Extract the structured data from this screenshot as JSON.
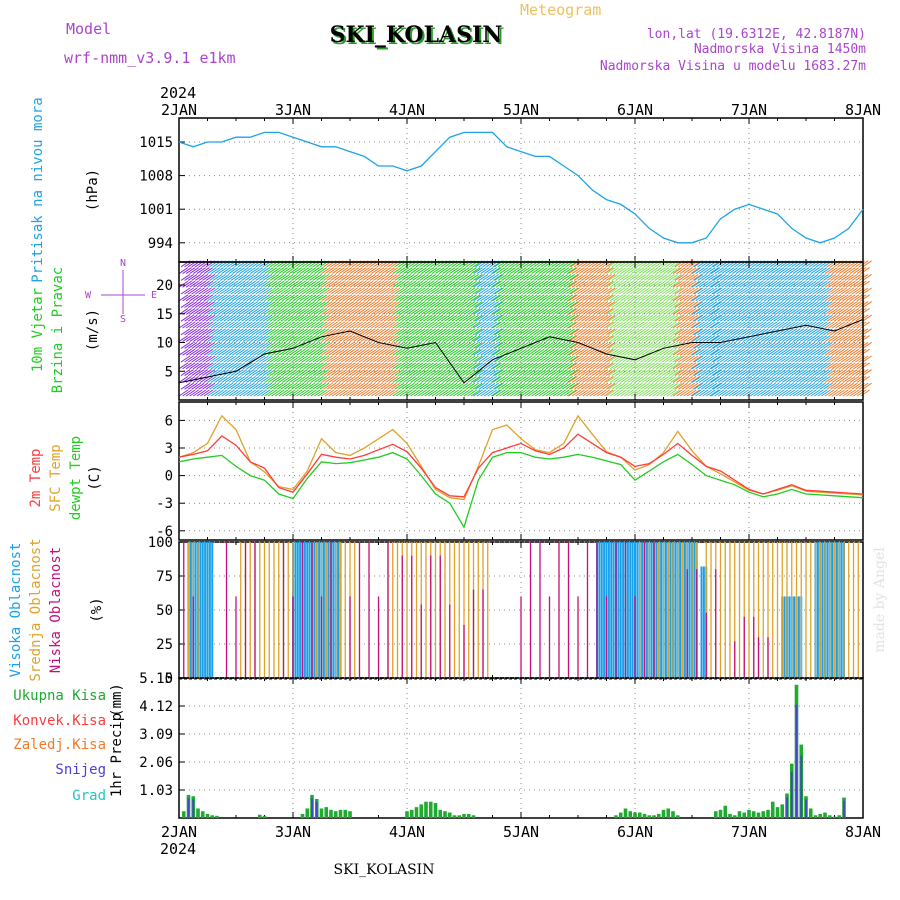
{
  "header": {
    "model_label": "Model",
    "model_name": "wrf-nmm_v3.9.1 e1km",
    "station": "SKI_KOLASIN",
    "meteogram": "Meteogram",
    "lonlat": "lon,lat (19.6312E, 42.8187N)",
    "altitude": "Nadmorska Visina 1450m",
    "model_altitude": "Nadmorska Visina u modelu 1683.27m",
    "year_top": "2024",
    "year_bottom": "2024",
    "footer": "SKI_KOLASIN",
    "watermark": "made by Angel"
  },
  "colors": {
    "pressure": "#1fa3e6",
    "temp2m": "#ff3b3b",
    "sfc": "#e0a22a",
    "dewpt": "#22cc22",
    "high_cloud": "#19a0e8",
    "mid_cloud": "#e0a22a",
    "low_cloud": "#c4107c",
    "total_precip": "#1faa30",
    "conv_precip": "#ff3b3b",
    "freezing_precip": "#f07a2a",
    "snow": "#4a3fd9",
    "hail": "#21c4c4",
    "model_label": "#aa44cc",
    "meteogram_title": "#f0c060",
    "grid": "#888888"
  },
  "chart_data": [
    {
      "type": "line",
      "panel": "pressure",
      "ylabel_main": "Pritisak na nivou mora",
      "ylabel_unit": "(hPa)",
      "yticks": [
        994,
        1001,
        1008,
        1015
      ],
      "ylim": [
        990,
        1020
      ],
      "x_hours": [
        0,
        3,
        6,
        9,
        12,
        15,
        18,
        21,
        24,
        27,
        30,
        33,
        36,
        39,
        42,
        45,
        48,
        51,
        54,
        57,
        60,
        63,
        66,
        69,
        72,
        75,
        78,
        81,
        84,
        87,
        90,
        93,
        96,
        99,
        102,
        105,
        108,
        111,
        114,
        117,
        120,
        123,
        126,
        127,
        129,
        132,
        135,
        138,
        141,
        144
      ],
      "values": [
        1015,
        1014,
        1015,
        1015,
        1016,
        1016,
        1017,
        1017,
        1016,
        1015,
        1014,
        1014,
        1013,
        1012,
        1010,
        1010,
        1009,
        1010,
        1013,
        1016,
        1017,
        1017,
        1017,
        1014,
        1013,
        1012,
        1012,
        1010,
        1008,
        1005,
        1003,
        1002,
        1000,
        997,
        995,
        994,
        994,
        995,
        999,
        1001,
        1002,
        1001,
        1000,
        999,
        997,
        995,
        994,
        995,
        997,
        1001
      ]
    },
    {
      "type": "barbs",
      "panel": "wind",
      "ylabel_main": "10m Vjetar",
      "ylabel_sub": "Brzina i Pravac",
      "ylabel_unit": "(m/s)",
      "yticks": [
        5,
        10,
        15,
        20
      ],
      "ylim": [
        0,
        24
      ],
      "compass_n": "N",
      "compass_s": "S",
      "compass_w": "W",
      "compass_e": "E",
      "speed_x_hours": [
        0,
        6,
        12,
        18,
        24,
        30,
        36,
        42,
        48,
        54,
        60,
        66,
        72,
        78,
        84,
        90,
        96,
        102,
        108,
        114,
        120,
        126,
        132,
        138,
        144
      ],
      "speed_values": [
        3,
        4,
        5,
        8,
        9,
        11,
        12,
        10,
        9,
        10,
        3,
        7,
        9,
        11,
        10,
        8,
        7,
        9,
        10,
        10,
        11,
        12,
        13,
        12,
        14
      ]
    },
    {
      "type": "line",
      "panel": "temperature",
      "ylabel_a": "2m Temp",
      "ylabel_b": "SFC Temp",
      "ylabel_c": "dewpt Temp",
      "ylabel_unit": "(C)",
      "yticks": [
        -6,
        -3,
        0,
        3,
        6
      ],
      "ylim": [
        -7,
        8
      ],
      "x_hours": [
        0,
        3,
        6,
        9,
        12,
        15,
        18,
        21,
        24,
        27,
        30,
        33,
        36,
        39,
        42,
        45,
        48,
        51,
        54,
        57,
        60,
        63,
        66,
        69,
        72,
        75,
        78,
        81,
        84,
        87,
        90,
        93,
        96,
        99,
        102,
        105,
        108,
        111,
        114,
        117,
        120,
        123,
        126,
        129,
        132,
        135,
        138,
        141,
        144
      ],
      "series": [
        {
          "name": "2m Temp",
          "values": [
            2.0,
            2.3,
            2.7,
            4.3,
            3.3,
            1.5,
            0.8,
            -1.3,
            -1.8,
            0.2,
            2.3,
            2.0,
            1.8,
            2.2,
            2.8,
            3.4,
            2.6,
            0.8,
            -1.3,
            -2.2,
            -2.3,
            0.8,
            2.5,
            3.0,
            3.5,
            2.7,
            2.3,
            3.0,
            4.5,
            3.5,
            2.5,
            2.0,
            1.0,
            1.3,
            2.3,
            3.5,
            2.2,
            1.0,
            0.5,
            -0.5,
            -1.5,
            -2.0,
            -1.5,
            -1.0,
            -1.6,
            -1.7,
            -1.8,
            -1.9,
            -2.0
          ]
        },
        {
          "name": "SFC Temp",
          "values": [
            2.0,
            2.5,
            3.5,
            6.5,
            5.0,
            1.5,
            0.4,
            -1.2,
            -1.5,
            0.5,
            4.0,
            2.5,
            2.2,
            3.0,
            4.0,
            5.0,
            3.5,
            1.0,
            -1.5,
            -2.4,
            -2.6,
            1.0,
            5.0,
            5.5,
            4.0,
            2.8,
            2.5,
            3.5,
            6.5,
            4.5,
            2.6,
            2.0,
            0.6,
            1.2,
            2.5,
            4.8,
            2.7,
            1.0,
            0.2,
            -0.7,
            -1.6,
            -2.0,
            -1.6,
            -1.1,
            -1.7,
            -1.8,
            -1.9,
            -2.0,
            -2.1
          ]
        },
        {
          "name": "dewpt Temp",
          "values": [
            1.5,
            1.8,
            2.0,
            2.2,
            1.0,
            0.0,
            -0.5,
            -2.0,
            -2.5,
            -0.3,
            1.5,
            1.3,
            1.4,
            1.7,
            2.0,
            2.5,
            1.8,
            0.0,
            -2.0,
            -3.0,
            -5.6,
            -0.5,
            2.0,
            2.5,
            2.5,
            2.0,
            1.8,
            2.0,
            2.3,
            2.0,
            1.6,
            1.2,
            -0.5,
            0.5,
            1.5,
            2.3,
            1.2,
            0.0,
            -0.5,
            -1.0,
            -1.8,
            -2.3,
            -2.0,
            -1.5,
            -2.0,
            -2.1,
            -2.2,
            -2.3,
            -2.4
          ]
        }
      ]
    },
    {
      "type": "bar",
      "panel": "cloud",
      "ylabel_a": "Visoka Oblacnost",
      "ylabel_b": "Srednja Oblacnost",
      "ylabel_c": "Niska Oblacnost",
      "ylabel_unit": "(%)",
      "yticks": [
        0,
        25,
        50,
        75,
        100
      ],
      "ylim": [
        0,
        100
      ],
      "series": [
        {
          "name": "Visoka Oblacnost",
          "segments": [
            [
              2,
              7,
              100
            ],
            [
              24,
              34,
              100
            ],
            [
              88,
              109,
              100
            ],
            [
              110,
              111,
              82
            ],
            [
              127,
              131,
              60
            ],
            [
              134,
              140,
              100
            ]
          ]
        },
        {
          "name": "Srednja Oblacnost",
          "segments": [
            [
              2,
              4,
              100
            ],
            [
              13,
              24,
              100
            ],
            [
              28,
              37,
              100
            ],
            [
              44,
              65,
              100
            ],
            [
              97,
              109,
              100
            ],
            [
              111,
              119,
              100
            ],
            [
              120,
              130,
              100
            ],
            [
              131,
              143,
              100
            ]
          ]
        },
        {
          "name": "Niska Oblacnost",
          "segments": [
            [
              1,
              4,
              100
            ],
            [
              10,
              16,
              100
            ],
            [
              22,
              32,
              100
            ],
            [
              36,
              44,
              100
            ],
            [
              47,
              57,
              90
            ],
            [
              60,
              64,
              65
            ],
            [
              72,
              100,
              100
            ],
            [
              107,
              114,
              80
            ],
            [
              117,
              121,
              45
            ],
            [
              122,
              124,
              30
            ]
          ]
        }
      ]
    },
    {
      "type": "bar",
      "panel": "precip",
      "legend": [
        "Ukupna Kisa",
        "Konvek.Kisa",
        "Zaledj.Kisa",
        "Snijeg",
        "Grad"
      ],
      "ylabel_a": "1hr Precip",
      "ylabel_unit": "(mm)",
      "yticks": [
        "1.03",
        "2.06",
        "3.09",
        "4.12",
        "5.15"
      ],
      "ylim": [
        0,
        5.15
      ],
      "x_hours": [
        1,
        2,
        3,
        4,
        5,
        6,
        7,
        8,
        17,
        18,
        26,
        27,
        28,
        29,
        30,
        31,
        32,
        33,
        34,
        35,
        36,
        48,
        49,
        50,
        51,
        52,
        53,
        54,
        55,
        56,
        57,
        58,
        59,
        60,
        61,
        62,
        92,
        93,
        94,
        95,
        96,
        97,
        98,
        99,
        100,
        101,
        102,
        103,
        104,
        105,
        113,
        114,
        115,
        116,
        117,
        118,
        119,
        120,
        121,
        122,
        123,
        124,
        125,
        126,
        127,
        128,
        129,
        130,
        131,
        132,
        133,
        134,
        135,
        136,
        137,
        138,
        139,
        140
      ],
      "values": [
        0.25,
        0.85,
        0.8,
        0.35,
        0.25,
        0.15,
        0.1,
        0.08,
        0.12,
        0.08,
        0.15,
        0.35,
        0.85,
        0.7,
        0.35,
        0.4,
        0.3,
        0.25,
        0.3,
        0.3,
        0.25,
        0.25,
        0.3,
        0.4,
        0.5,
        0.6,
        0.6,
        0.55,
        0.3,
        0.25,
        0.2,
        0.1,
        0.1,
        0.15,
        0.15,
        0.1,
        0.1,
        0.2,
        0.35,
        0.25,
        0.2,
        0.2,
        0.15,
        0.1,
        0.1,
        0.15,
        0.3,
        0.35,
        0.25,
        0.1,
        0.25,
        0.3,
        0.45,
        0.15,
        0.1,
        0.25,
        0.2,
        0.3,
        0.25,
        0.2,
        0.25,
        0.3,
        0.6,
        0.4,
        0.5,
        0.9,
        2.0,
        4.9,
        2.7,
        0.8,
        0.35,
        0.1,
        0.15,
        0.2,
        0.1,
        0.05,
        0.1,
        0.75
      ]
    }
  ],
  "xaxis": {
    "labels": [
      "2JAN",
      "3JAN",
      "4JAN",
      "5JAN",
      "6JAN",
      "7JAN",
      "8JAN"
    ]
  }
}
